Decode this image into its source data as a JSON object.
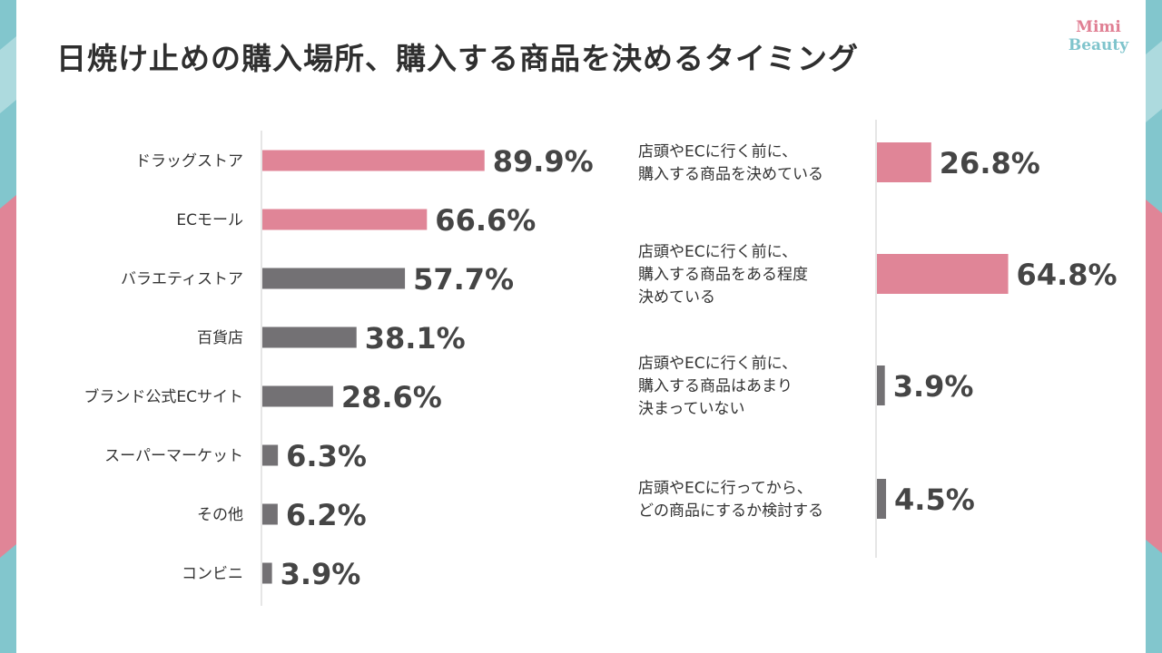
{
  "title": "日焼け止めの購入場所、購入する商品を決めるタイミング",
  "logo": {
    "line1": "Mimi",
    "line2": "Beauty"
  },
  "colors": {
    "pink": "#e08597",
    "gray": "#737174",
    "teal": "#82c6cd",
    "axis": "#cccccc"
  },
  "chart_data": [
    {
      "type": "bar",
      "orientation": "horizontal",
      "categories": [
        "ドラッグストア",
        "ECモール",
        "バラエティストア",
        "百貨店",
        "ブランド公式ECサイト",
        "スーパーマーケット",
        "その他",
        "コンビニ"
      ],
      "values": [
        89.9,
        66.6,
        57.7,
        38.1,
        28.6,
        6.3,
        6.2,
        3.9
      ],
      "value_labels": [
        "89.9%",
        "66.6%",
        "57.7%",
        "38.1%",
        "28.6%",
        "6.3%",
        "6.2%",
        "3.9%"
      ],
      "bar_colors": [
        "pink",
        "pink",
        "gray",
        "gray",
        "gray",
        "gray",
        "gray",
        "gray"
      ],
      "unit": "%",
      "xlim": [
        0,
        100
      ],
      "grid": false
    },
    {
      "type": "bar",
      "orientation": "horizontal",
      "categories": [
        [
          "店頭やECに行く前に、",
          "購入する商品を決めている"
        ],
        [
          "店頭やECに行く前に、",
          "購入する商品をある程度",
          "決めている"
        ],
        [
          "店頭やECに行く前に、",
          "購入する商品はあまり",
          "決まっていない"
        ],
        [
          "店頭やECに行ってから、",
          "どの商品にするか検討する"
        ]
      ],
      "values": [
        26.8,
        64.8,
        3.9,
        4.5
      ],
      "value_labels": [
        "26.8%",
        "64.8%",
        "3.9%",
        "4.5%"
      ],
      "bar_colors": [
        "pink",
        "pink",
        "gray",
        "gray"
      ],
      "unit": "%",
      "xlim": [
        0,
        100
      ],
      "grid": false
    }
  ]
}
